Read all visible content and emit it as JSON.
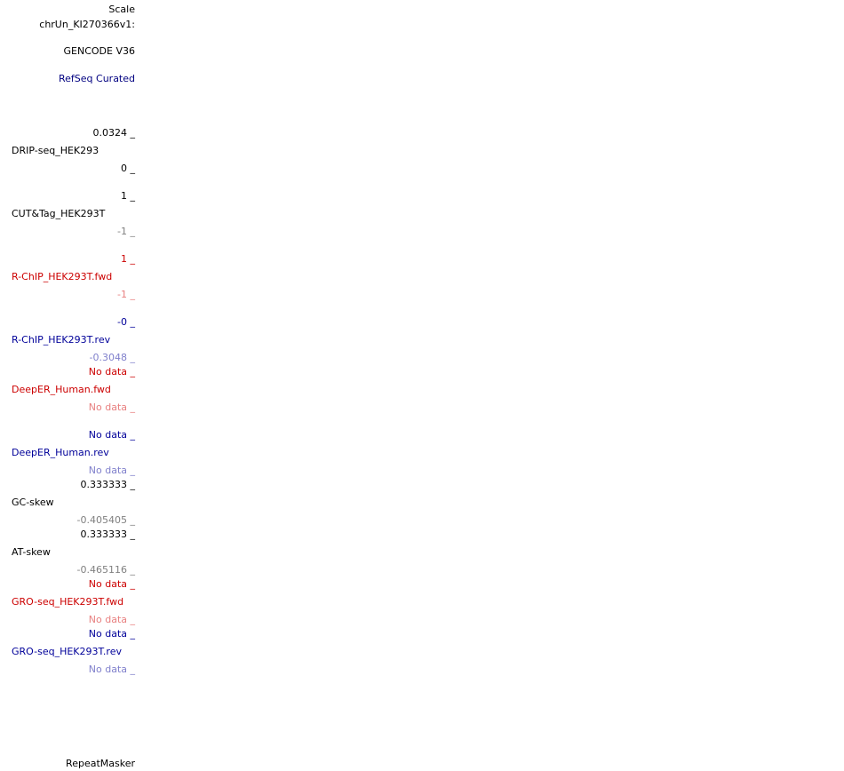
{
  "colors": {
    "black": "#000000",
    "gray": "#808080",
    "red": "#cc0000",
    "red_light": "#e88080",
    "blue": "#000099",
    "blue_light": "#8080cc",
    "navy": "#000080"
  },
  "header": {
    "scale": "Scale",
    "chrom": "chrUn_KI270366v1:",
    "gencode": "GENCODE V36",
    "refseq": "RefSeq Curated"
  },
  "tracks": [
    {
      "name": "DRIP-seq_HEK293",
      "max": "0.0324 _",
      "min": "0 _"
    },
    {
      "name": "CUT&Tag_HEK293T",
      "max": "1 _",
      "min": "-1 _"
    },
    {
      "name": "R-ChIP_HEK293T.fwd",
      "max": "1 _",
      "min": "-1 _"
    },
    {
      "name": "R-ChIP_HEK293T.rev",
      "max": "-0 _",
      "min": "-0.3048 _"
    },
    {
      "name": "DeepER_Human.fwd",
      "max": "No data _",
      "min": "No data _"
    },
    {
      "name": "DeepER_Human.rev",
      "max": "No data _",
      "min": "No data _"
    },
    {
      "name": "GC-skew",
      "max": "0.333333 _",
      "min": "-0.405405 _"
    },
    {
      "name": "AT-skew",
      "max": "0.333333 _",
      "min": "-0.465116 _"
    },
    {
      "name": "GRO-seq_HEK293T.fwd",
      "max": "No data _",
      "min": "No data _"
    },
    {
      "name": "GRO-seq_HEK293T.rev",
      "max": "No data _",
      "min": "No data _"
    }
  ],
  "footer": {
    "repeatmasker": "RepeatMasker"
  }
}
